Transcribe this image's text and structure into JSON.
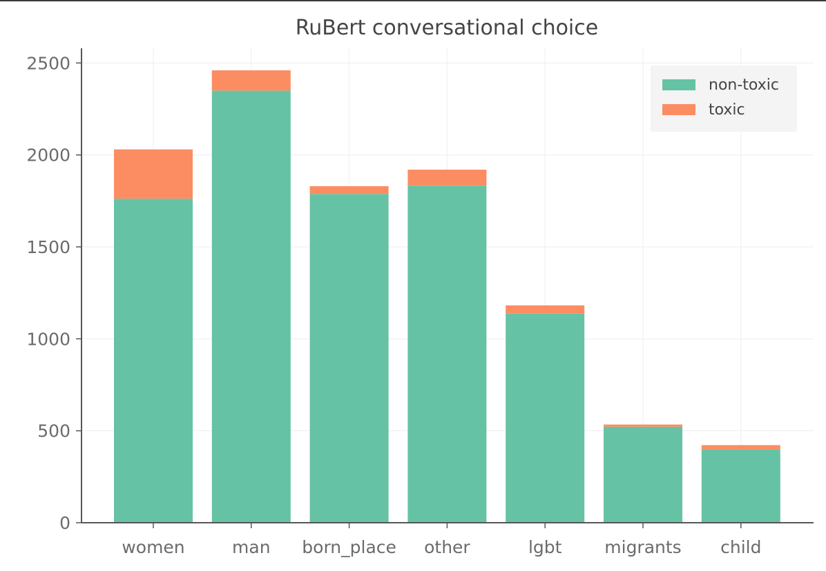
{
  "chart_data": {
    "type": "bar",
    "stacked": true,
    "title": "RuBert conversational choice",
    "xlabel": "",
    "ylabel": "",
    "categories": [
      "women",
      "man",
      "born_place",
      "other",
      "lgbt",
      "migrants",
      "child"
    ],
    "series": [
      {
        "name": "non-toxic",
        "color": "#66c2a5",
        "values": [
          1762,
          2350,
          1788,
          1833,
          1137,
          522,
          398
        ]
      },
      {
        "name": "toxic",
        "color": "#fc8d62",
        "values": [
          268,
          110,
          42,
          87,
          45,
          12,
          24
        ]
      }
    ],
    "ylim": [
      0,
      2580
    ],
    "yticks": [
      0,
      500,
      1000,
      1500,
      2000,
      2500
    ],
    "grid": true,
    "legend_position": "top-right"
  }
}
